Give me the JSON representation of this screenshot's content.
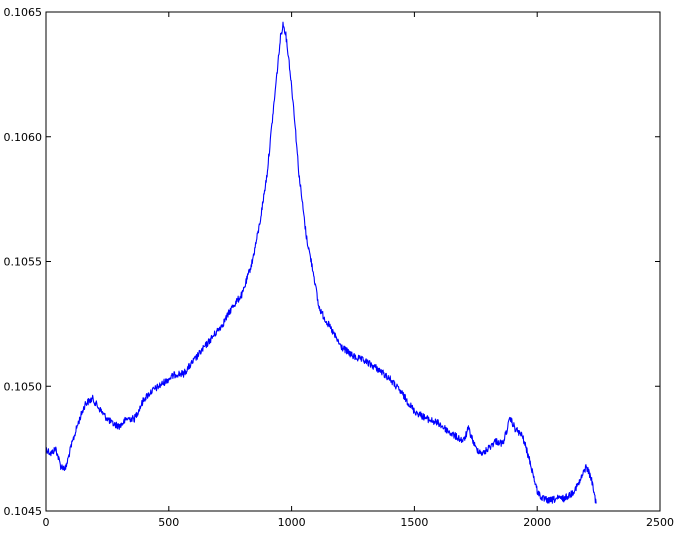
{
  "chart_data": {
    "type": "line",
    "title": "",
    "xlabel": "",
    "ylabel": "",
    "xlim": [
      0,
      2500
    ],
    "ylim": [
      0.1045,
      0.1065
    ],
    "xticks": [
      0,
      500,
      1000,
      1500,
      2000,
      2500
    ],
    "xtick_labels": [
      "0",
      "500",
      "1000",
      "1500",
      "2000",
      "2500"
    ],
    "yticks": [
      0.1045,
      0.105,
      0.1055,
      0.106,
      0.1065
    ],
    "ytick_labels": [
      "0.1045",
      "0.1050",
      "0.1055",
      "0.1060",
      "0.1065"
    ],
    "grid": false,
    "legend": "none",
    "series": [
      {
        "color": "#0000ff",
        "x": [
          0,
          20,
          40,
          60,
          80,
          100,
          130,
          160,
          190,
          210,
          240,
          270,
          300,
          330,
          360,
          400,
          430,
          460,
          500,
          530,
          560,
          600,
          640,
          680,
          720,
          760,
          800,
          840,
          870,
          900,
          920,
          940,
          955,
          965,
          975,
          990,
          1010,
          1030,
          1060,
          1090,
          1110,
          1130,
          1160,
          1200,
          1250,
          1300,
          1350,
          1400,
          1450,
          1500,
          1550,
          1600,
          1650,
          1700,
          1720,
          1750,
          1780,
          1800,
          1830,
          1860,
          1890,
          1910,
          1940,
          1970,
          2000,
          2020,
          2050,
          2080,
          2110,
          2140,
          2170,
          2200,
          2220,
          2240
        ],
        "y": [
          0.10475,
          0.10473,
          0.10475,
          0.10468,
          0.10467,
          0.10475,
          0.10485,
          0.10493,
          0.10495,
          0.10492,
          0.10488,
          0.10485,
          0.10484,
          0.10487,
          0.10487,
          0.10495,
          0.10498,
          0.105,
          0.10503,
          0.10505,
          0.10505,
          0.1051,
          0.10515,
          0.1052,
          0.10525,
          0.10532,
          0.10537,
          0.1055,
          0.10565,
          0.10585,
          0.10605,
          0.10625,
          0.1064,
          0.10645,
          0.10642,
          0.1063,
          0.1061,
          0.10585,
          0.1056,
          0.10545,
          0.10532,
          0.10528,
          0.10523,
          0.10516,
          0.10512,
          0.1051,
          0.10507,
          0.10503,
          0.10497,
          0.1049,
          0.10487,
          0.10485,
          0.10481,
          0.10478,
          0.10483,
          0.10475,
          0.10473,
          0.10475,
          0.10478,
          0.10477,
          0.10487,
          0.10483,
          0.1048,
          0.1047,
          0.10458,
          0.10455,
          0.10454,
          0.10455,
          0.10455,
          0.10457,
          0.10461,
          0.10468,
          0.10463,
          0.10453
        ]
      }
    ]
  }
}
